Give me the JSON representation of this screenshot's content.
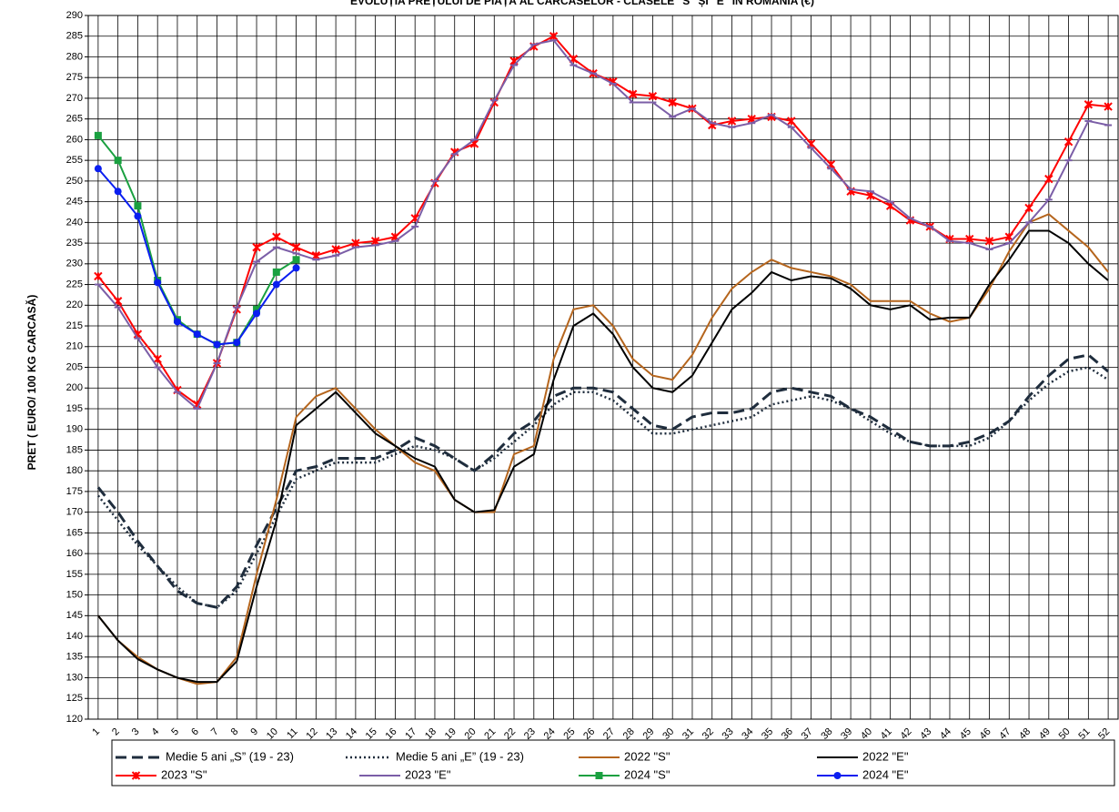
{
  "chart_data": {
    "type": "line",
    "title": "EVOLUȚIA PREȚULUI DE PIAȚĂ AL CARCASELOR - CLASELE \"S\" ȘI \"E\" ÎN ROMÂNIA (€)",
    "y_label": "PRET ( EURO/ 100 KG CARCASĂ)",
    "categories": [
      "1",
      "2",
      "3",
      "4",
      "5",
      "6",
      "7",
      "8",
      "9",
      "10",
      "11",
      "12",
      "13",
      "14",
      "15",
      "16",
      "17",
      "18",
      "19",
      "20",
      "21",
      "22",
      "23",
      "24",
      "25",
      "26",
      "27",
      "28",
      "29",
      "30",
      "31",
      "32",
      "33",
      "34",
      "35",
      "36",
      "37",
      "38",
      "39",
      "40",
      "41",
      "42",
      "43",
      "44",
      "45",
      "46",
      "47",
      "48",
      "49",
      "50",
      "51",
      "52"
    ],
    "ylim": [
      120,
      290
    ],
    "yticks": [
      120,
      125,
      130,
      135,
      140,
      145,
      150,
      155,
      160,
      165,
      170,
      175,
      180,
      185,
      190,
      195,
      200,
      205,
      210,
      215,
      220,
      225,
      230,
      235,
      240,
      245,
      250,
      255,
      260,
      265,
      270,
      275,
      280,
      285,
      290
    ],
    "grid": true,
    "series": [
      {
        "name": "Medie 5 ani „S” (19 - 23)",
        "color": "#1f2d3d",
        "dash": "dashed",
        "marker": "none",
        "values": [
          176,
          170,
          163,
          157,
          151,
          148,
          147,
          152,
          162,
          171,
          180,
          181,
          183,
          183,
          183,
          185,
          188,
          186,
          183,
          180,
          184,
          189,
          192,
          198,
          200,
          200,
          199,
          195,
          191,
          190,
          193,
          194,
          194,
          195,
          199,
          200,
          199,
          198,
          195,
          193,
          190,
          187,
          186,
          186,
          187,
          189,
          192,
          198,
          203,
          207,
          208,
          204
        ]
      },
      {
        "name": "Medie 5 ani „E” (19 - 23)",
        "color": "#1f2d3d",
        "dash": "dotted",
        "marker": "none",
        "values": [
          174,
          168,
          162,
          157,
          152,
          148,
          147,
          151,
          160,
          169,
          178,
          180,
          182,
          182,
          182,
          184,
          186,
          185,
          183,
          180,
          183,
          187,
          191,
          196,
          199,
          199,
          197,
          193,
          189,
          189,
          190,
          191,
          192,
          193,
          196,
          197,
          198,
          197,
          195,
          192,
          189,
          187,
          186,
          186,
          186,
          188,
          192,
          197,
          201,
          204,
          205,
          202
        ]
      },
      {
        "name": "2022 \"S\"",
        "color": "#b5651d",
        "dash": "solid",
        "marker": "none",
        "values": [
          145,
          139,
          135,
          132,
          130,
          128.5,
          129,
          135,
          155,
          173,
          193,
          198,
          200,
          195,
          190,
          186,
          182,
          180,
          173,
          170,
          170,
          184,
          186,
          207,
          219,
          220,
          215,
          207,
          203,
          202,
          208,
          217,
          224,
          228,
          231,
          229,
          228,
          227,
          225,
          221,
          221,
          221,
          218,
          216,
          217,
          224,
          233,
          240,
          242,
          238,
          234,
          228
        ]
      },
      {
        "name": "2022 \"E\"",
        "color": "#000000",
        "dash": "solid",
        "marker": "none",
        "values": [
          145,
          139,
          134.5,
          132,
          130,
          129,
          129,
          134,
          152,
          168,
          191,
          195,
          199,
          194,
          189,
          186,
          183,
          181,
          173,
          170,
          170.5,
          181,
          184,
          202,
          215,
          218,
          213,
          205,
          200,
          199,
          203,
          211,
          219,
          223,
          228,
          226,
          227,
          226.5,
          224,
          220,
          219,
          220,
          216.5,
          217,
          217,
          225,
          231,
          238,
          238,
          235,
          230,
          226
        ]
      },
      {
        "name": "2023 \"S\"",
        "color": "#ff0000",
        "dash": "solid",
        "marker": "x",
        "values": [
          227,
          221,
          213,
          207,
          199.5,
          196,
          206,
          219,
          234,
          236.5,
          234,
          232,
          233.5,
          235,
          235.5,
          236.5,
          241,
          249.5,
          257,
          259,
          269,
          279,
          282.5,
          285,
          279.5,
          276,
          274,
          271,
          270.5,
          269,
          267.5,
          263.5,
          264.5,
          265,
          265.5,
          264.5,
          259,
          254,
          247.5,
          246.5,
          244,
          240.5,
          239,
          236,
          236,
          235.5,
          236.5,
          243.5,
          250.5,
          259.5,
          268.5,
          268
        ]
      },
      {
        "name": "2023 \"E\"",
        "color": "#7b5ea7",
        "dash": "solid",
        "marker": "dash",
        "values": [
          225,
          219.5,
          212,
          205,
          199,
          195,
          206,
          219.5,
          230.5,
          234,
          232.5,
          231,
          232,
          234,
          234.5,
          235.5,
          239,
          250,
          256.5,
          260,
          269.5,
          278,
          283,
          284,
          278,
          276,
          273.5,
          269,
          269,
          265.5,
          267.5,
          264,
          263,
          264,
          266,
          263,
          258,
          253,
          248,
          247.5,
          245,
          241,
          239,
          235.5,
          235,
          233.5,
          235,
          240,
          245.5,
          255,
          264.5,
          263.5
        ]
      },
      {
        "name": "2024 \"S\"",
        "color": "#1aa040",
        "dash": "solid",
        "marker": "square",
        "values": [
          261,
          255,
          244,
          226,
          216.5,
          213,
          210.5,
          211,
          219,
          228,
          231,
          null,
          null,
          null,
          null,
          null,
          null,
          null,
          null,
          null,
          null,
          null,
          null,
          null,
          null,
          null,
          null,
          null,
          null,
          null,
          null,
          null,
          null,
          null,
          null,
          null,
          null,
          null,
          null,
          null,
          null,
          null,
          null,
          null,
          null,
          null,
          null,
          null,
          null,
          null,
          null,
          null
        ]
      },
      {
        "name": "2024 \"E\"",
        "color": "#0a1ef0",
        "dash": "solid",
        "marker": "circle",
        "values": [
          253,
          247.5,
          241.5,
          225.5,
          216,
          213,
          210.5,
          211,
          218,
          225,
          229,
          null,
          null,
          null,
          null,
          null,
          null,
          null,
          null,
          null,
          null,
          null,
          null,
          null,
          null,
          null,
          null,
          null,
          null,
          null,
          null,
          null,
          null,
          null,
          null,
          null,
          null,
          null,
          null,
          null,
          null,
          null,
          null,
          null,
          null,
          null,
          null,
          null,
          null,
          null,
          null,
          null
        ]
      }
    ]
  }
}
